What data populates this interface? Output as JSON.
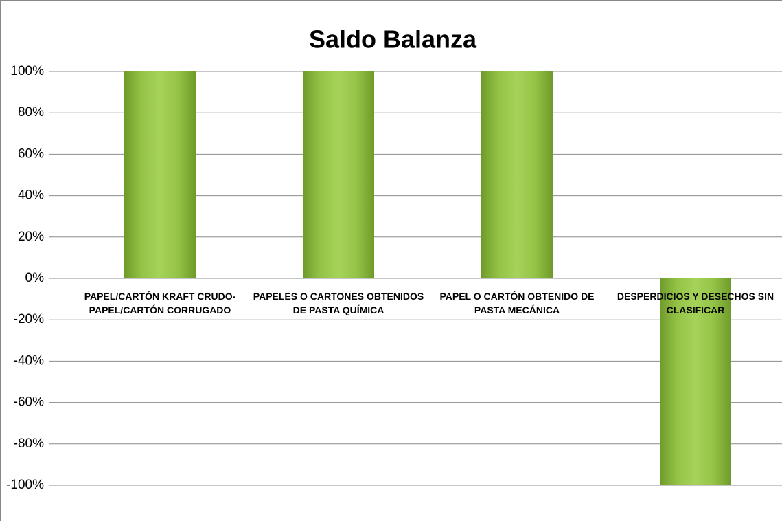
{
  "chart_data": {
    "type": "bar",
    "title": "Saldo Balanza",
    "categories": [
      "PAPEL/CARTÓN KRAFT CRUDO-PAPEL/CARTÓN CORRUGADO",
      "PAPELES O CARTONES OBTENIDOS  DE PASTA QUÍMICA",
      "PAPEL O CARTÓN OBTENIDO DE PASTA MECÁNICA",
      "DESPERDICIOS Y DESECHOS SIN CLASIFICAR"
    ],
    "values": [
      100,
      100,
      100,
      -100
    ],
    "color": "#8dbb3f",
    "ylim": [
      -100,
      100
    ],
    "yticks": [
      {
        "value": -100,
        "label": "-100%"
      },
      {
        "value": -80,
        "label": "-80%"
      },
      {
        "value": -60,
        "label": "-60%"
      },
      {
        "value": -40,
        "label": "-40%"
      },
      {
        "value": -20,
        "label": "-20%"
      },
      {
        "value": 0,
        "label": "0%"
      },
      {
        "value": 20,
        "label": "20%"
      },
      {
        "value": 40,
        "label": "40%"
      },
      {
        "value": 60,
        "label": "60%"
      },
      {
        "value": 80,
        "label": "80%"
      },
      {
        "value": 100,
        "label": "100%"
      }
    ],
    "grid": true
  }
}
